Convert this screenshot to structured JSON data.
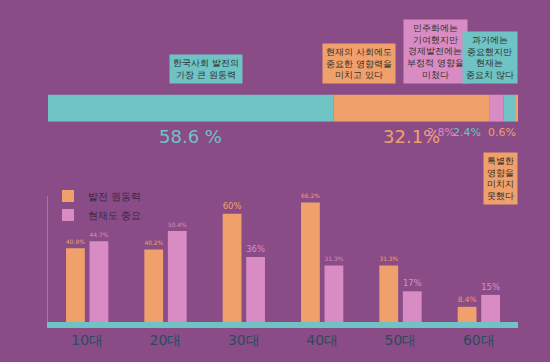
{
  "chart_data": [
    {
      "type": "bar",
      "orientation": "horizontal",
      "stacked": true,
      "xlim": [
        0,
        96.5
      ],
      "tick_labels": false,
      "data_labels": true,
      "series": [
        {
          "name": "한국사회 발전의\n가장 큰 원동력",
          "color": "#6fc3c4",
          "values": [
            58.6
          ],
          "value_labels": [
            "58.6 %"
          ]
        },
        {
          "name": "현재의 사회에도\n중요한 영향력을\n미치고 있다",
          "color": "#f0a06a",
          "values": [
            32.1
          ],
          "value_labels": [
            "32.1%"
          ]
        },
        {
          "name": "민주화에는\n기여했지만\n경제발전에는\n부정적 영향을\n미쳤다",
          "color": "#d98cc4",
          "values": [
            2.8
          ],
          "value_labels": [
            "2.8%"
          ]
        },
        {
          "name": "과거에는\n중요했지만\n현재는\n중요치 않다",
          "color": "#6fc3c4",
          "values": [
            2.4
          ],
          "value_labels": [
            "2.4%"
          ]
        },
        {
          "name": "특별한\n영향을\n미치지\n못했다",
          "color": "#f0a06a",
          "values": [
            0.6
          ],
          "value_labels": [
            "0.6%"
          ]
        }
      ]
    },
    {
      "type": "bar",
      "categories": [
        "10대",
        "20대",
        "30대",
        "40대",
        "50대",
        "60대"
      ],
      "ylim": [
        0,
        70
      ],
      "tick_labels": "x",
      "legend": "upper left",
      "data_labels": true,
      "series": [
        {
          "name": "발전 원동력",
          "color": "#f0a06a",
          "values": [
            40.8,
            40.2,
            60,
            66.2,
            31.3,
            8.4
          ],
          "value_labels": [
            "40.8%",
            "40.2%",
            "60%",
            "66.2%",
            "31.3%",
            "8.4%"
          ]
        },
        {
          "name": "현재도 중요",
          "color": "#d98cc4",
          "values": [
            44.7,
            50.4,
            36,
            31.3,
            17,
            15
          ],
          "value_labels": [
            "44.7%",
            "50.4%",
            "36%",
            "31.3%",
            "17%",
            "15%"
          ]
        }
      ]
    }
  ]
}
